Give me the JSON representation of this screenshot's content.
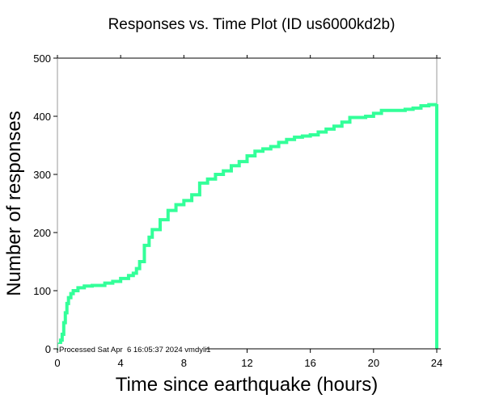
{
  "chart_data": {
    "type": "line",
    "title": "Responses vs. Time Plot (ID us6000kd2b)",
    "xlabel": "Time since earthquake (hours)",
    "ylabel": "Number of responses",
    "xlim": [
      0,
      24
    ],
    "ylim": [
      0,
      500
    ],
    "xticks": [
      0,
      4,
      8,
      12,
      16,
      20,
      24
    ],
    "yticks": [
      0,
      100,
      200,
      300,
      400,
      500
    ],
    "grid": false,
    "annotation": "Processed Sat Apr  6 16:05:37 2024 vmdyli1",
    "color": "#33ff99",
    "series": [
      {
        "name": "responses",
        "x": [
          0,
          0.1,
          0.2,
          0.3,
          0.4,
          0.5,
          0.6,
          0.7,
          0.85,
          1,
          1.3,
          1.7,
          2.2,
          3,
          3.5,
          4,
          4.5,
          4.8,
          5,
          5.2,
          5.5,
          5.8,
          6,
          6.5,
          7,
          7.5,
          8,
          8.5,
          9,
          9.5,
          10,
          10.5,
          11,
          11.5,
          12,
          12.5,
          13,
          13.5,
          14,
          14.5,
          15,
          15.5,
          16,
          16.5,
          17,
          17.5,
          18,
          18.5,
          19,
          19.5,
          20,
          20.5,
          21,
          22,
          22.5,
          23,
          23.5,
          24,
          24
        ],
        "y": [
          0,
          8,
          15,
          25,
          45,
          62,
          78,
          88,
          95,
          100,
          105,
          108,
          109,
          113,
          116,
          121,
          126,
          130,
          138,
          150,
          178,
          192,
          205,
          222,
          238,
          248,
          255,
          265,
          285,
          292,
          300,
          306,
          315,
          322,
          332,
          340,
          344,
          348,
          355,
          360,
          364,
          366,
          368,
          373,
          378,
          383,
          390,
          398,
          398,
          400,
          405,
          410,
          410,
          412,
          414,
          418,
          420,
          421,
          0
        ]
      }
    ]
  }
}
